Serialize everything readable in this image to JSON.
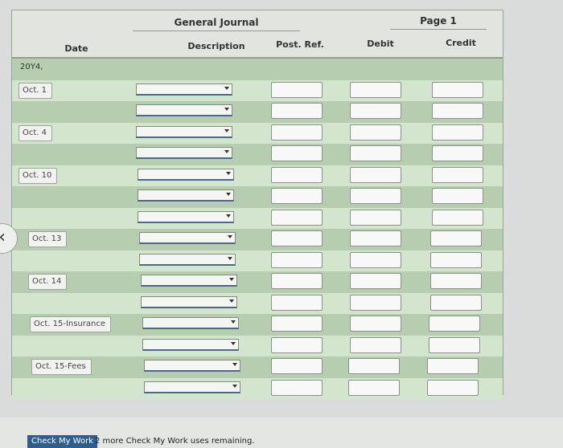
{
  "journal": {
    "title": "General Journal",
    "page_label": "Page 1",
    "columns": {
      "date": "Date",
      "description": "Description",
      "post_ref": "Post. Ref.",
      "debit": "Debit",
      "credit": "Credit"
    },
    "year_label": "20Y4,",
    "date_labels": [
      "Oct. 1",
      "Oct. 4",
      "Oct. 10",
      "Oct. 13",
      "Oct. 14",
      "Oct. 15-Insurance",
      "Oct. 15-Fees"
    ]
  },
  "footer": {
    "check_button": "Check My Work",
    "remaining_text": "2 more Check My Work uses remaining."
  },
  "icons": {
    "nav": "chevron-left-icon",
    "dropdown": "chevron-down-icon"
  }
}
